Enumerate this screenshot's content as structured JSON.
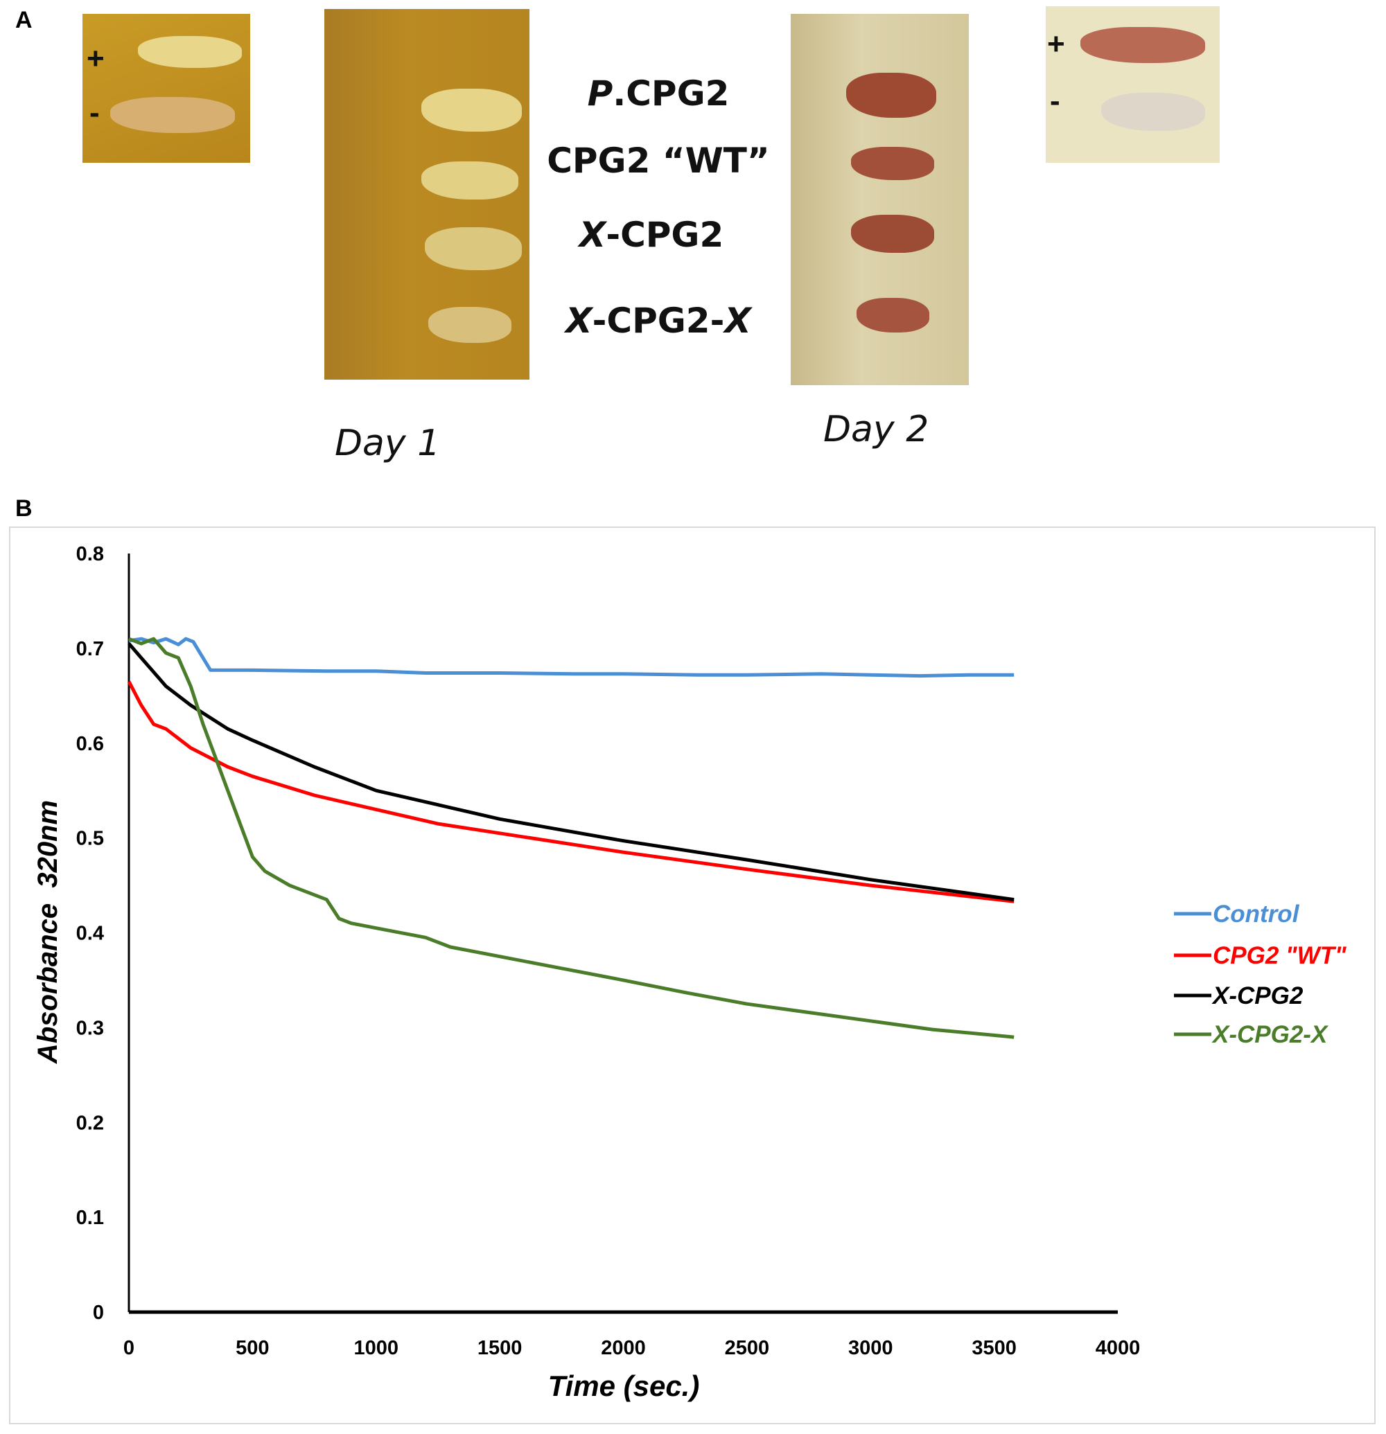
{
  "panel_a": {
    "letter": "A",
    "left_inset_signs": [
      "+",
      "-"
    ],
    "right_inset_signs": [
      "+",
      "-"
    ],
    "plate_labels": [
      {
        "prefix": "P",
        "rest": ".CPG2",
        "suffix": ""
      },
      {
        "prefix": "",
        "rest": "CPG2 “WT”",
        "suffix": ""
      },
      {
        "prefix": "X",
        "rest": "-CPG2",
        "suffix": ""
      },
      {
        "prefix": "X",
        "rest": "-CPG2-",
        "suffix": "X"
      }
    ],
    "day1_label": "Day 1",
    "day2_label": "Day 2"
  },
  "panel_b": {
    "letter": "B"
  },
  "chart_data": {
    "type": "line",
    "title": "",
    "xlabel": "Time (sec.)",
    "ylabel": "Absorbance  320nm",
    "xlim": [
      0,
      4000
    ],
    "ylim": [
      0,
      0.8
    ],
    "xticks": [
      "0",
      "500",
      "1000",
      "1500",
      "2000",
      "2500",
      "3000",
      "3500",
      "4000"
    ],
    "yticks": [
      "0",
      "0.1",
      "0.2",
      "0.3",
      "0.4",
      "0.5",
      "0.6",
      "0.7",
      "0.8"
    ],
    "grid": false,
    "legend_position": "right",
    "series": [
      {
        "name": "Control",
        "color": "#4a8fd6",
        "x": [
          0,
          50,
          100,
          150,
          200,
          230,
          260,
          330,
          500,
          800,
          1000,
          1200,
          1500,
          1800,
          2000,
          2300,
          2500,
          2800,
          3000,
          3200,
          3400,
          3580
        ],
        "y": [
          0.708,
          0.71,
          0.706,
          0.71,
          0.704,
          0.71,
          0.707,
          0.677,
          0.677,
          0.676,
          0.676,
          0.674,
          0.674,
          0.673,
          0.673,
          0.672,
          0.672,
          0.673,
          0.672,
          0.671,
          0.672,
          0.672
        ]
      },
      {
        "name": "CPG2 \"WT\"",
        "color": "#ff0000",
        "x": [
          0,
          50,
          100,
          150,
          250,
          400,
          500,
          750,
          1000,
          1250,
          1500,
          2000,
          2500,
          3000,
          3580
        ],
        "y": [
          0.665,
          0.64,
          0.62,
          0.615,
          0.595,
          0.575,
          0.565,
          0.545,
          0.53,
          0.515,
          0.505,
          0.485,
          0.467,
          0.45,
          0.433
        ]
      },
      {
        "name": "X-CPG2",
        "color": "#000000",
        "x": [
          0,
          50,
          100,
          150,
          250,
          400,
          500,
          750,
          1000,
          1250,
          1500,
          2000,
          2500,
          3000,
          3580
        ],
        "y": [
          0.705,
          0.69,
          0.675,
          0.66,
          0.64,
          0.615,
          0.603,
          0.575,
          0.55,
          0.535,
          0.52,
          0.497,
          0.477,
          0.456,
          0.435
        ]
      },
      {
        "name": "X-CPG2-X",
        "color": "#4a7c2a",
        "x": [
          0,
          50,
          100,
          150,
          200,
          250,
          300,
          350,
          400,
          450,
          500,
          550,
          650,
          800,
          850,
          900,
          1000,
          1200,
          1300,
          1500,
          1700,
          2000,
          2250,
          2500,
          2750,
          3000,
          3250,
          3580
        ],
        "y": [
          0.71,
          0.705,
          0.71,
          0.695,
          0.69,
          0.66,
          0.62,
          0.585,
          0.55,
          0.515,
          0.48,
          0.465,
          0.45,
          0.435,
          0.415,
          0.41,
          0.405,
          0.395,
          0.385,
          0.375,
          0.365,
          0.35,
          0.337,
          0.325,
          0.316,
          0.307,
          0.298,
          0.29
        ]
      }
    ]
  }
}
